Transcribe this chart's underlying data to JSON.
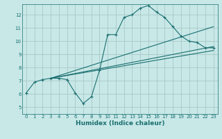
{
  "xlabel": "Humidex (Indice chaleur)",
  "background_color": "#c8e8e8",
  "grid_color": "#a8c8c8",
  "line_color": "#1a6e6e",
  "xlim": [
    -0.5,
    23.5
  ],
  "ylim": [
    4.5,
    12.8
  ],
  "xticks": [
    0,
    1,
    2,
    3,
    4,
    5,
    6,
    7,
    8,
    9,
    10,
    11,
    12,
    13,
    14,
    15,
    16,
    17,
    18,
    19,
    20,
    21,
    22,
    23
  ],
  "yticks": [
    5,
    6,
    7,
    8,
    9,
    10,
    11,
    12
  ],
  "line1_x": [
    0,
    1,
    2,
    3,
    4,
    5,
    6,
    7,
    8,
    9,
    10,
    11,
    12,
    13,
    14,
    15,
    16,
    17,
    18,
    19,
    20,
    21,
    22,
    23
  ],
  "line1_y": [
    6.1,
    6.9,
    7.1,
    7.2,
    7.2,
    7.1,
    6.1,
    5.3,
    5.8,
    7.8,
    10.5,
    10.5,
    11.8,
    12.0,
    12.5,
    12.7,
    12.2,
    11.8,
    11.1,
    10.4,
    10.0,
    9.9,
    9.5,
    9.5
  ],
  "line2_x": [
    3,
    23
  ],
  "line2_y": [
    7.2,
    9.3
  ],
  "line3_x": [
    3,
    23
  ],
  "line3_y": [
    7.2,
    9.6
  ],
  "line4_x": [
    3,
    23
  ],
  "line4_y": [
    7.2,
    11.1
  ]
}
